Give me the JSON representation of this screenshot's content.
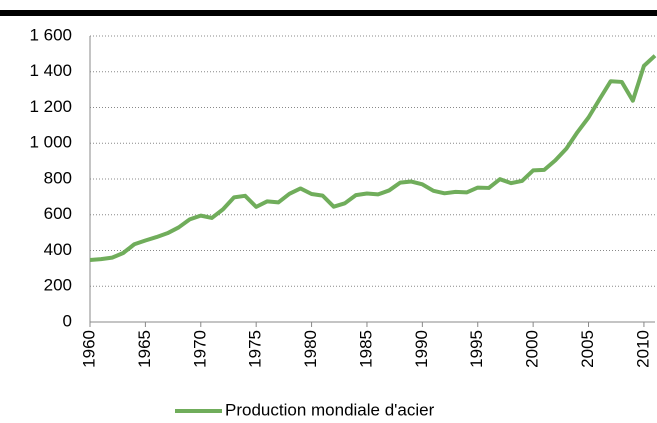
{
  "chart_data": {
    "type": "line",
    "x": [
      1960,
      1961,
      1962,
      1963,
      1964,
      1965,
      1966,
      1967,
      1968,
      1969,
      1970,
      1971,
      1972,
      1973,
      1974,
      1975,
      1976,
      1977,
      1978,
      1979,
      1980,
      1981,
      1982,
      1983,
      1984,
      1985,
      1986,
      1987,
      1988,
      1989,
      1990,
      1991,
      1992,
      1993,
      1994,
      1995,
      1996,
      1997,
      1998,
      1999,
      2000,
      2001,
      2002,
      2003,
      2004,
      2005,
      2006,
      2007,
      2008,
      2009,
      2010,
      2011
    ],
    "series": [
      {
        "name": "Production mondiale d'acier",
        "color": "#70ad5b",
        "values": [
          347,
          352,
          360,
          386,
          435,
          456,
          475,
          497,
          529,
          574,
          595,
          582,
          630,
          697,
          706,
          644,
          675,
          669,
          717,
          747,
          716,
          707,
          645,
          664,
          710,
          719,
          714,
          736,
          780,
          786,
          770,
          734,
          720,
          728,
          725,
          752,
          750,
          799,
          777,
          789,
          848,
          851,
          904,
          970,
          1062,
          1144,
          1247,
          1347,
          1343,
          1238,
          1433,
          1490
        ]
      }
    ],
    "xlim": [
      1960,
      2011
    ],
    "xticks": [
      1960,
      1965,
      1970,
      1975,
      1980,
      1985,
      1990,
      1995,
      2000,
      2005,
      2010
    ],
    "ylim": [
      0,
      1600
    ],
    "yticks": [
      0,
      200,
      400,
      600,
      800,
      {
        "value": 1000,
        "label": "1 000"
      },
      {
        "value": 1200,
        "label": "1 200"
      },
      {
        "value": 1400,
        "label": "1 400"
      },
      {
        "value": 1600,
        "label": "1 600"
      }
    ],
    "grid": true,
    "legend": "bottom"
  }
}
